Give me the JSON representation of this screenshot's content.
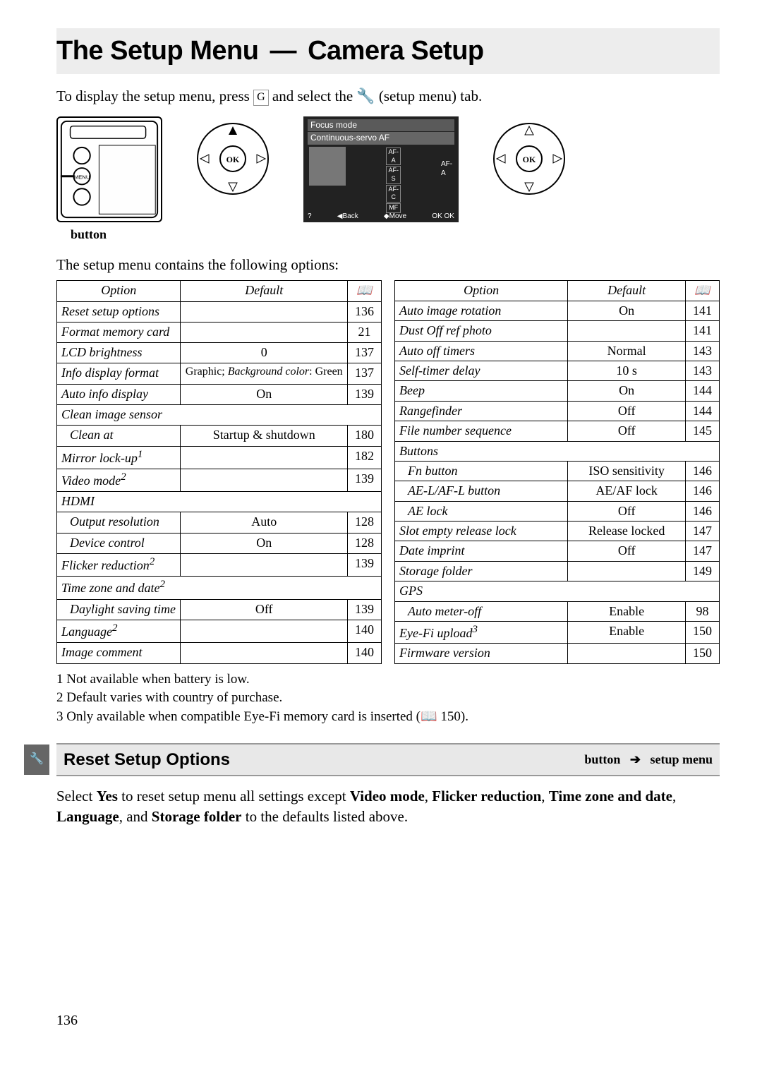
{
  "title": {
    "left": "The Setup Menu",
    "sep": "▯—",
    "right": "Camera Setup"
  },
  "intro": {
    "pre": "To display the setup menu, press ",
    "btn": "G",
    "mid": " and select the ",
    "icon": "🔧",
    "post": " (setup menu) tab."
  },
  "lcd": {
    "focus_mode": "Focus mode",
    "cont": "Continuous-servo AF",
    "opts": [
      "AF-A",
      "AF-S",
      "AF-C",
      "MF"
    ],
    "right_tag": "AF-A",
    "bottom": [
      "?",
      "◀Back",
      "◆Move",
      "OK OK"
    ]
  },
  "button_caption": "button",
  "contains": "The setup menu contains the following options:",
  "headers": {
    "option": "Option",
    "default": "Default",
    "page_glyph": "📖"
  },
  "left_table": [
    {
      "option": "Reset setup options",
      "default": "",
      "page": "136",
      "top": true
    },
    {
      "option": "Format memory card",
      "default": "",
      "page": "21",
      "top": true
    },
    {
      "option": "LCD brightness",
      "default": "0",
      "page": "137",
      "top": true
    },
    {
      "option": "Info display format",
      "default": "Graphic; Background color: Green",
      "page": "137",
      "top": true,
      "default_italic_prefix": "Background color:",
      "default_two_line": true,
      "default_line1": "Graphic",
      "default_line2_label": "Background color",
      "default_line2_value": "Green"
    },
    {
      "option": "Auto info display",
      "default": "On",
      "page": "139",
      "top": true
    },
    {
      "option": "Clean image sensor",
      "section": true,
      "top": true
    },
    {
      "option": "Clean at",
      "default": "Startup & shutdown",
      "page": "180",
      "sub": true,
      "top": true,
      "default_style": "normal"
    },
    {
      "option": "Mirror lock-up",
      "sup": "1",
      "default": "",
      "page": "182",
      "top": true
    },
    {
      "option": "Video mode",
      "sup": "2",
      "default": "",
      "page": "139",
      "top": true
    },
    {
      "option": "HDMI",
      "section": true,
      "top": true
    },
    {
      "option": "Output resolution",
      "default": "Auto",
      "page": "128",
      "sub": true,
      "top": true
    },
    {
      "option": "Device control",
      "default": "On",
      "page": "128",
      "sub": true,
      "top": true
    },
    {
      "option": "Flicker reduction",
      "sup": "2",
      "default": "",
      "page": "139",
      "top": true
    },
    {
      "option": "Time zone and date",
      "sup": "2",
      "section": true,
      "top": true
    },
    {
      "option": "Daylight saving time",
      "default": "Off",
      "page": "139",
      "sub": true,
      "top": true
    },
    {
      "option": "Language",
      "sup": "2",
      "default": "",
      "page": "140",
      "top": true
    },
    {
      "option": "Image comment",
      "default": "",
      "page": "140",
      "top": true
    }
  ],
  "right_table": [
    {
      "option": "Auto image rotation",
      "default": "On",
      "page": "141",
      "top": true
    },
    {
      "option": "Dust Off ref photo",
      "default": "",
      "page": "141",
      "top": true
    },
    {
      "option": "Auto off timers",
      "default": "Normal",
      "page": "143",
      "top": true
    },
    {
      "option": "Self-timer delay",
      "default": "10 s",
      "page": "143",
      "top": true
    },
    {
      "option": "Beep",
      "default": "On",
      "page": "144",
      "top": true
    },
    {
      "option": "Rangefinder",
      "default": "Off",
      "page": "144",
      "top": true
    },
    {
      "option": "File number sequence",
      "default": "Off",
      "page": "145",
      "top": true
    },
    {
      "option": "Buttons",
      "section": true,
      "top": true
    },
    {
      "option": "Fn button",
      "default": "ISO sensitivity",
      "page": "146",
      "sub": true,
      "top": true
    },
    {
      "option": "AE-L/AF-L button",
      "default": "AE/AF lock",
      "page": "146",
      "sub": true,
      "top": true
    },
    {
      "option": "AE lock",
      "default": "Off",
      "page": "146",
      "sub": true,
      "top": true
    },
    {
      "option": "Slot empty release lock",
      "default": "Release locked",
      "page": "147",
      "top": true
    },
    {
      "option": "Date imprint",
      "default": "Off",
      "page": "147",
      "top": true
    },
    {
      "option": "Storage folder",
      "default": "",
      "page": "149",
      "top": true
    },
    {
      "option": "GPS",
      "section": true,
      "top": true
    },
    {
      "option": "Auto meter-off",
      "default": "Enable",
      "page": "98",
      "sub": true,
      "top": true
    },
    {
      "option": "Eye-Fi upload",
      "sup": "3",
      "default": "Enable",
      "page": "150",
      "top": true
    },
    {
      "option": "Firmware version",
      "default": "",
      "page": "150",
      "top": true
    }
  ],
  "footnotes": [
    "1 Not available when battery is low.",
    "2 Default varies with country of purchase.",
    "3 Only available when compatible Eye-Fi memory card is inserted (📖 150)."
  ],
  "reset_bar": {
    "title": "Reset Setup Options",
    "btn": "button",
    "menu": "setup menu"
  },
  "reset_text": {
    "line1_pre": "Select ",
    "yes": "Yes",
    "line1_post": " to reset setup menu all settings except ",
    "video": "Video mode",
    "flicker": "Flicker reduction",
    "tz": "Time zone and date",
    "lang": "Language",
    "and": ", and ",
    "storage": "Storage folder",
    "tail": " to the defaults listed above."
  },
  "page_number": "136",
  "colors": {
    "title_bg": "#ededed",
    "reset_bg": "#e8e8e8",
    "border": "#000000",
    "side_tab": "#666666"
  }
}
